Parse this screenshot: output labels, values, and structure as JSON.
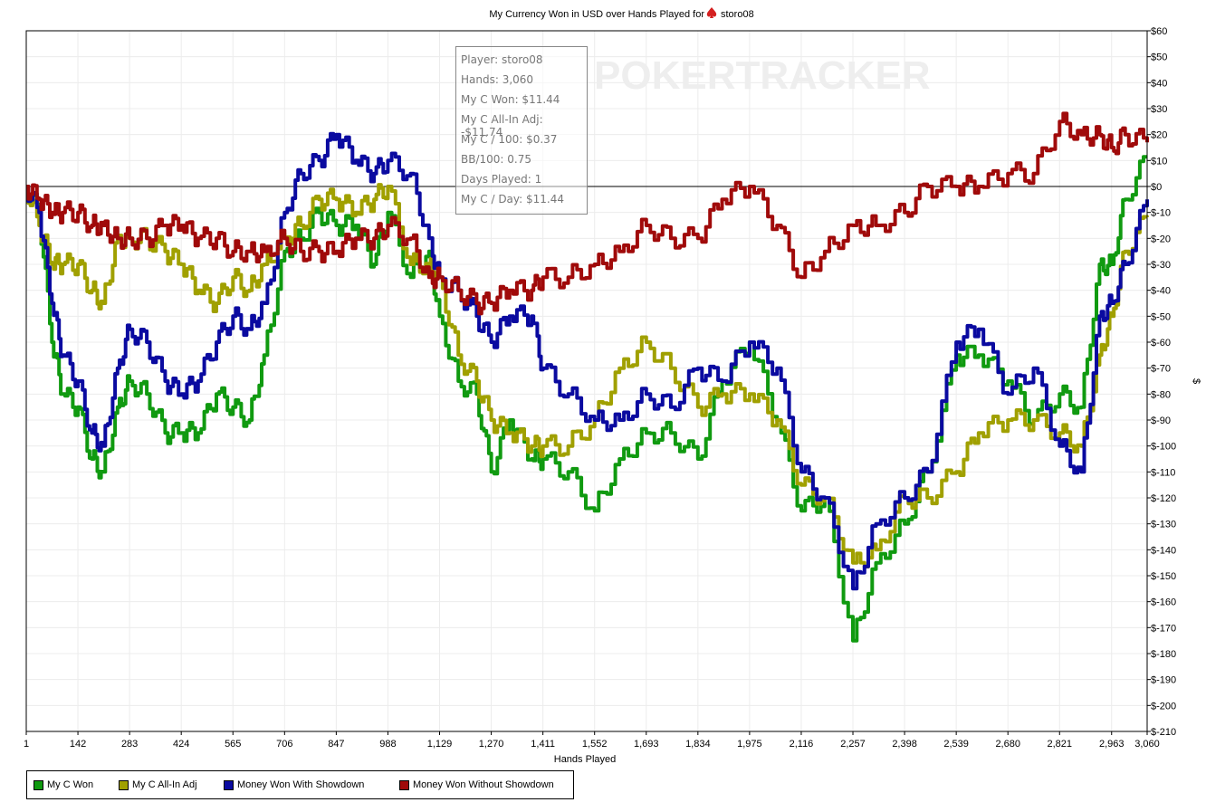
{
  "chart_data": {
    "type": "line",
    "title": "My Currency Won in USD over Hands Played for",
    "player_name": "storo08",
    "title_icon": "pokerstars-spade-icon",
    "watermark": "POKERTRACKER",
    "xlabel": "Hands Played",
    "ylabel": "$",
    "xlim": [
      1,
      3060
    ],
    "ylim": [
      -210,
      60
    ],
    "grid": true,
    "legend_position": "bottom-left",
    "x_ticks": [
      1,
      142,
      283,
      424,
      565,
      706,
      847,
      988,
      1129,
      1270,
      1411,
      1552,
      1693,
      1834,
      1975,
      2116,
      2257,
      2398,
      2539,
      2680,
      2821,
      2963,
      3060
    ],
    "x_tick_labels": [
      "1",
      "142",
      "283",
      "424",
      "565",
      "706",
      "847",
      "988",
      "1,129",
      "1,270",
      "1,411",
      "1,552",
      "1,693",
      "1,834",
      "1,975",
      "2,116",
      "2,257",
      "2,398",
      "2,539",
      "2,680",
      "2,821",
      "2,963",
      "3,060"
    ],
    "y_ticks": [
      60,
      50,
      40,
      30,
      20,
      10,
      0,
      -10,
      -20,
      -30,
      -40,
      -50,
      -60,
      -70,
      -80,
      -90,
      -100,
      -110,
      -120,
      -130,
      -140,
      -150,
      -160,
      -170,
      -180,
      -190,
      -200,
      -210
    ],
    "y_tick_labels": [
      "$60",
      "$50",
      "$40",
      "$30",
      "$20",
      "$10",
      "$0",
      "$-10",
      "$-20",
      "$-30",
      "$-40",
      "$-50",
      "$-60",
      "$-70",
      "$-80",
      "$-90",
      "$-100",
      "$-110",
      "$-120",
      "$-130",
      "$-140",
      "$-150",
      "$-160",
      "$-170",
      "$-180",
      "$-190",
      "$-200",
      "$-210"
    ],
    "x": [
      1,
      36,
      71,
      100,
      142,
      180,
      210,
      250,
      283,
      330,
      380,
      424,
      470,
      520,
      565,
      610,
      650,
      706,
      750,
      800,
      847,
      900,
      950,
      988,
      1050,
      1100,
      1129,
      1180,
      1230,
      1270,
      1320,
      1380,
      1411,
      1480,
      1552,
      1620,
      1693,
      1760,
      1834,
      1900,
      1975,
      2050,
      2116,
      2180,
      2257,
      2320,
      2398,
      2460,
      2539,
      2600,
      2680,
      2750,
      2821,
      2880,
      2930,
      2963,
      3000,
      3060
    ],
    "series": [
      {
        "name": "My C Won",
        "color": "#109a10",
        "values": [
          0,
          -10,
          -60,
          -80,
          -85,
          -105,
          -110,
          -85,
          -75,
          -80,
          -95,
          -95,
          -95,
          -80,
          -85,
          -90,
          -65,
          -25,
          -20,
          -10,
          -15,
          -15,
          -30,
          -10,
          -35,
          -25,
          -50,
          -75,
          -80,
          -110,
          -90,
          -105,
          -105,
          -110,
          -125,
          -105,
          -95,
          -95,
          -105,
          -75,
          -60,
          -90,
          -125,
          -120,
          -175,
          -145,
          -130,
          -110,
          -65,
          -65,
          -75,
          -90,
          -80,
          -85,
          -30,
          -30,
          -5,
          11.44
        ]
      },
      {
        "name": "My C All-In Adj",
        "color": "#a0a000",
        "values": [
          0,
          -15,
          -30,
          -30,
          -30,
          -40,
          -45,
          -20,
          -20,
          -20,
          -25,
          -30,
          -40,
          -45,
          -35,
          -40,
          -30,
          -20,
          -15,
          -5,
          -5,
          -10,
          -5,
          0,
          -30,
          -30,
          -35,
          -65,
          -75,
          -90,
          -95,
          -100,
          -100,
          -100,
          -90,
          -70,
          -60,
          -70,
          -85,
          -80,
          -80,
          -90,
          -115,
          -120,
          -145,
          -140,
          -120,
          -120,
          -110,
          -95,
          -90,
          -90,
          -95,
          -100,
          -65,
          -50,
          -25,
          -11.74
        ]
      },
      {
        "name": "Money Won With Showdown",
        "color": "#0a0aa0",
        "values": [
          0,
          -10,
          -45,
          -65,
          -75,
          -95,
          -100,
          -70,
          -55,
          -60,
          -75,
          -80,
          -75,
          -60,
          -50,
          -55,
          -45,
          -10,
          5,
          10,
          20,
          10,
          5,
          10,
          5,
          -20,
          -35,
          -40,
          -50,
          -60,
          -50,
          -50,
          -70,
          -80,
          -90,
          -90,
          -80,
          -85,
          -70,
          -75,
          -60,
          -70,
          -110,
          -120,
          -155,
          -130,
          -120,
          -110,
          -60,
          -55,
          -80,
          -70,
          -100,
          -110,
          -50,
          -45,
          -30,
          -5
        ]
      },
      {
        "name": "Money Won Without Showdown",
        "color": "#a00a0a",
        "values": [
          0,
          -5,
          -10,
          -10,
          -10,
          -15,
          -15,
          -20,
          -20,
          -20,
          -15,
          -15,
          -20,
          -20,
          -25,
          -25,
          -25,
          -20,
          -25,
          -25,
          -25,
          -20,
          -20,
          -15,
          -20,
          -35,
          -35,
          -40,
          -45,
          -45,
          -40,
          -40,
          -35,
          -35,
          -30,
          -25,
          -15,
          -20,
          -20,
          -5,
          0,
          -15,
          -35,
          -25,
          -15,
          -15,
          -10,
          0,
          0,
          0,
          5,
          5,
          25,
          20,
          20,
          15,
          20,
          17
        ]
      }
    ]
  },
  "tooltip": {
    "lines": [
      "Player: storo08",
      "Hands: 3,060",
      "My C Won: $11.44",
      "My C All-In Adj: -$11.74",
      "My C / 100: $0.37",
      "BB/100: 0.75",
      "Days Played: 1",
      "My C / Day: $11.44"
    ]
  }
}
